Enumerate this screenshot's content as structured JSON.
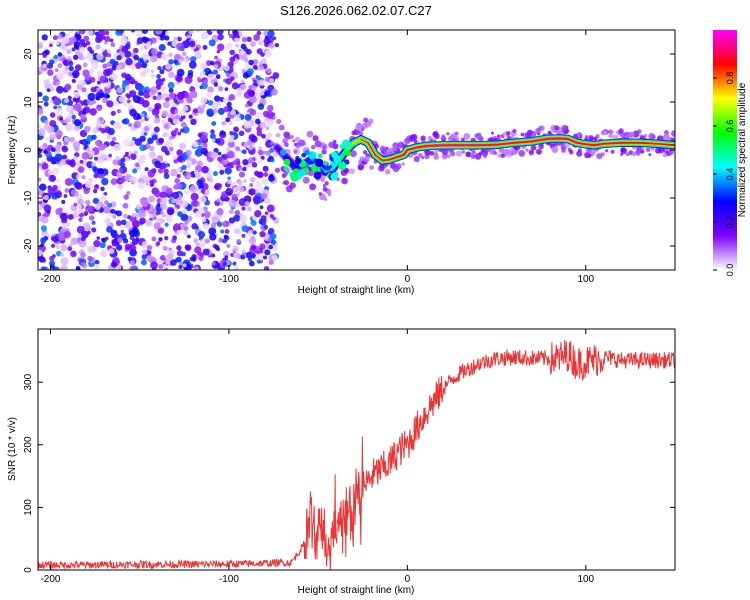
{
  "title": "S126.2026.062.02.07.C27",
  "chart_data": [
    {
      "type": "heatmap",
      "title": "S126.2026.062.02.07.C27",
      "xlabel": "Height of straight line (km)",
      "ylabel": "Frequency (Hz)",
      "xlim": [
        -207,
        150
      ],
      "ylim": [
        -25,
        25
      ],
      "x_ticks": [
        -200,
        -100,
        0,
        100
      ],
      "x_tick_labels": [
        "-200",
        "-100",
        "0",
        "100"
      ],
      "y_ticks": [
        -20,
        -10,
        0,
        10,
        20
      ],
      "y_tick_labels": [
        "-20",
        "-10",
        "0",
        "10",
        "20"
      ],
      "colorbar": {
        "label": "Normalized spectral amplitude",
        "range": [
          0,
          1
        ],
        "ticks": [
          0.0,
          0.2,
          0.4,
          0.6,
          0.8
        ],
        "tick_labels": [
          "0.0",
          "0.2",
          "0.4",
          "0.6",
          "0.8"
        ],
        "colormap": [
          "#ffffff",
          "#7f00ff",
          "#0000ff",
          "#00ffff",
          "#00ff00",
          "#ffff00",
          "#ff0000",
          "#ff00ff"
        ]
      },
      "noise_region": {
        "x_range": [
          -207,
          -73
        ],
        "typical_amplitude": 0.15
      },
      "signal_ridge": {
        "x": [
          -73,
          -68,
          -63,
          -58,
          -54,
          -50,
          -46,
          -42,
          -38,
          -34,
          -30,
          -26,
          -22,
          -18,
          -14,
          -10,
          -6,
          -2,
          0,
          5,
          10,
          15,
          20,
          30,
          40,
          50,
          60,
          70,
          78,
          85,
          90,
          95,
          100,
          105,
          110,
          120,
          130,
          140,
          150
        ],
        "y": [
          0.5,
          -1.5,
          -3.5,
          -3,
          -2,
          -3,
          -4.5,
          -4,
          -2,
          0,
          1.5,
          2.2,
          1.5,
          -1,
          -2.2,
          -2,
          -1.5,
          -1,
          0,
          0.5,
          0.8,
          0.9,
          1,
          1,
          1,
          1.1,
          1.5,
          1.8,
          2.3,
          2.4,
          2.3,
          1.5,
          1.2,
          1,
          1.3,
          1.5,
          1.5,
          1.3,
          1.0
        ],
        "amplitude": [
          0.2,
          0.25,
          0.3,
          0.3,
          0.35,
          0.35,
          0.4,
          0.45,
          0.5,
          0.6,
          0.7,
          0.8,
          0.85,
          0.85,
          0.85,
          0.85,
          0.9,
          0.92,
          0.9,
          0.9,
          0.92,
          0.95,
          0.95,
          0.95,
          0.93,
          0.9,
          0.9,
          0.9,
          0.92,
          0.95,
          0.93,
          0.9,
          0.9,
          0.9,
          0.9,
          0.88,
          0.88,
          0.86,
          0.86
        ]
      }
    },
    {
      "type": "line",
      "xlabel": "Height of straight line (km)",
      "ylabel": "SNR (10 * v/v)",
      "xlim": [
        -207,
        150
      ],
      "ylim": [
        0,
        385
      ],
      "x_ticks": [
        -200,
        -100,
        0,
        100
      ],
      "x_tick_labels": [
        "-200",
        "-100",
        "0",
        "100"
      ],
      "y_ticks": [
        0,
        100,
        200,
        300
      ],
      "y_tick_labels": [
        "0",
        "100",
        "200",
        "300"
      ],
      "series": [
        {
          "name": "SNR",
          "color": "#ee3333",
          "x": [
            -207,
            -180,
            -150,
            -120,
            -90,
            -65,
            -58,
            -55,
            -52,
            -48,
            -45,
            -40,
            -35,
            -30,
            -25,
            -20,
            -15,
            -10,
            -5,
            0,
            5,
            10,
            15,
            20,
            25,
            30,
            40,
            50,
            60,
            70,
            80,
            85,
            90,
            95,
            100,
            110,
            120,
            130,
            140,
            150
          ],
          "y": [
            8,
            8,
            9,
            9,
            10,
            12,
            40,
            110,
            60,
            90,
            40,
            80,
            100,
            120,
            130,
            150,
            160,
            170,
            190,
            200,
            225,
            250,
            270,
            290,
            305,
            315,
            330,
            338,
            340,
            338,
            338,
            338,
            345,
            330,
            332,
            340,
            335,
            335,
            335,
            335
          ],
          "spike_range": [
            -58,
            -25
          ],
          "noise_amplitude": 22
        }
      ]
    }
  ]
}
